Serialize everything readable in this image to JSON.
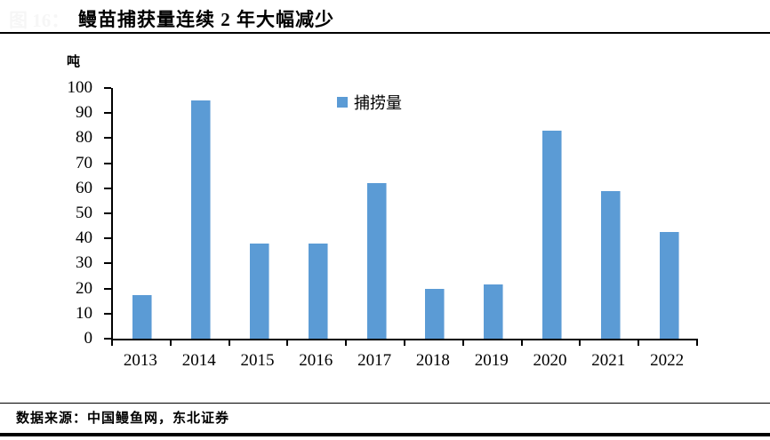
{
  "figure": {
    "number_label": "图 16：",
    "title": "鳗苗捕获量连续 2 年大幅减少"
  },
  "chart_data": {
    "type": "bar",
    "title": "鳗苗捕获量连续 2 年大幅减少",
    "unit_label": "吨",
    "categories": [
      "2013",
      "2014",
      "2015",
      "2016",
      "2017",
      "2018",
      "2019",
      "2020",
      "2021",
      "2022"
    ],
    "series": [
      {
        "name": "捕捞量",
        "values": [
          17.5,
          95,
          38,
          38,
          62,
          20,
          21.5,
          83,
          59,
          42.5
        ]
      }
    ],
    "ylim": [
      0,
      100
    ],
    "yticks": [
      0,
      10,
      20,
      30,
      40,
      50,
      60,
      70,
      80,
      90,
      100
    ],
    "bar_color": "#5B9BD5",
    "axis_color": "#000000",
    "grid": false,
    "legend_position": "top-center"
  },
  "footer": {
    "source": "数据来源：中国鳗鱼网，东北证券"
  }
}
